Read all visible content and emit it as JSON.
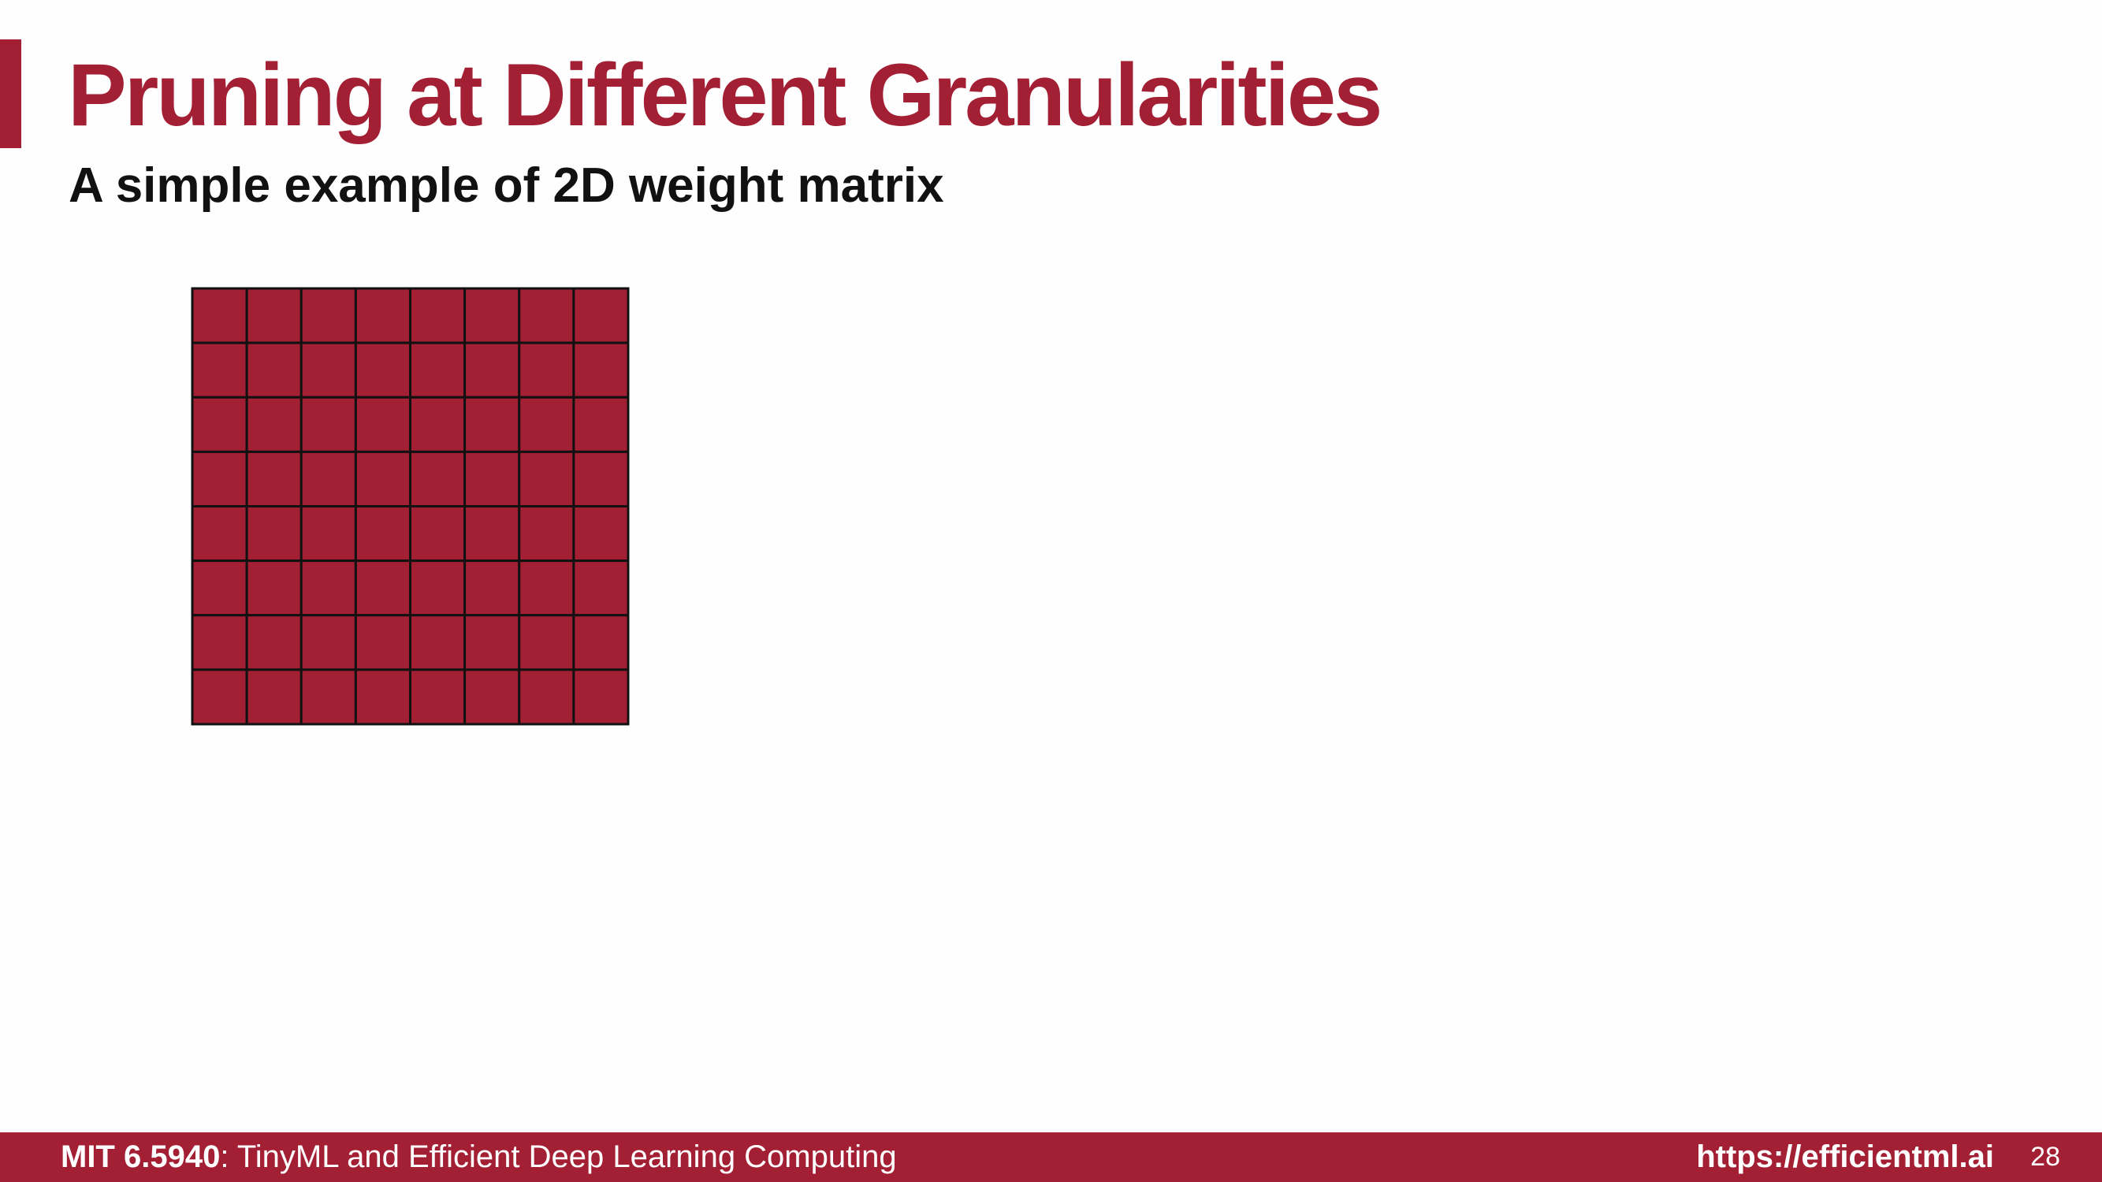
{
  "slide": {
    "title": "Pruning at Different Granularities",
    "subtitle": "A simple example of 2D weight matrix"
  },
  "matrix": {
    "rows": 8,
    "cols": 8,
    "cell_color": "#a31f34",
    "grid_color": "#111111"
  },
  "footer": {
    "course_code": "MIT 6.5940",
    "course_title": ": TinyML and Efficient Deep Learning Computing",
    "url": "https://efficientml.ai",
    "page_number": "28"
  },
  "colors": {
    "accent": "#a31f34",
    "background": "#fefefe",
    "footer_text": "#ffffff"
  }
}
